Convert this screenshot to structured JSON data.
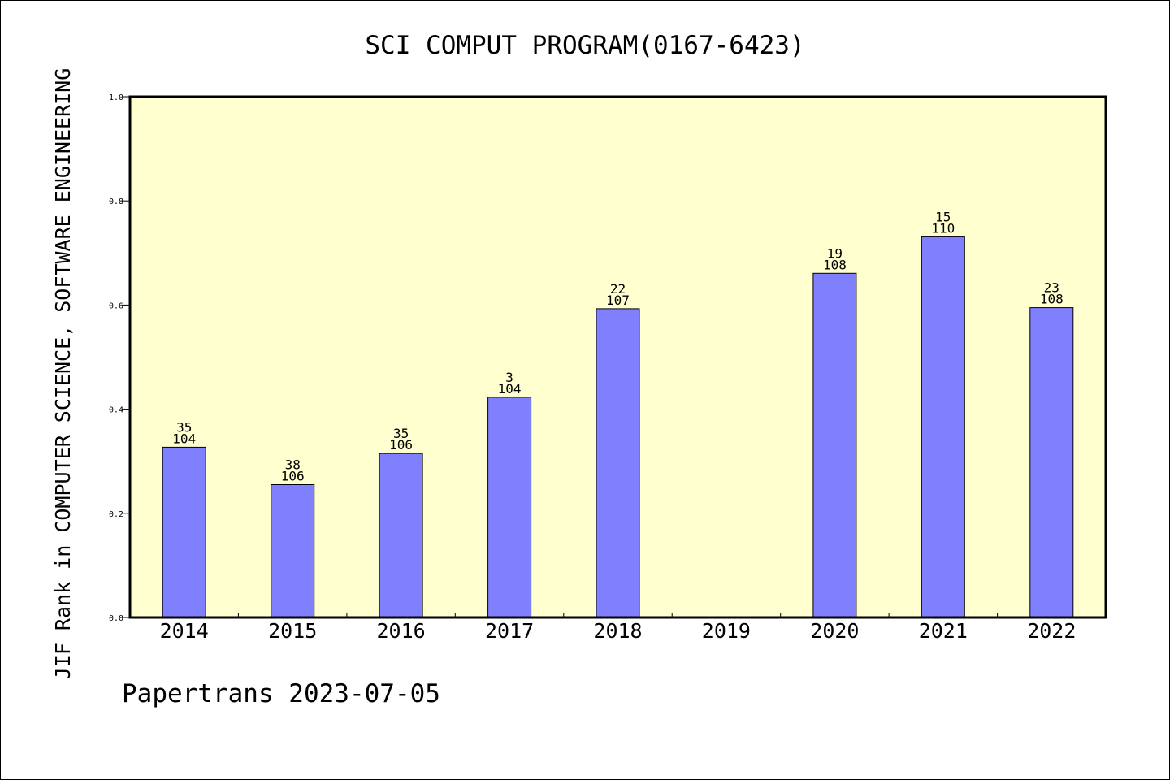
{
  "chart_data": {
    "type": "bar",
    "title": "SCI COMPUT PROGRAM(0167-6423)",
    "xlabel": "",
    "ylabel": "JIF Rank in COMPUTER SCIENCE, SOFTWARE ENGINEERING",
    "ylim": [
      0,
      1.0
    ],
    "yticks": [
      "0.0",
      "0.2",
      "0.4",
      "0.6",
      "0.8",
      "1.0"
    ],
    "grid": false,
    "categories": [
      "2014",
      "2015",
      "2016",
      "2017",
      "2018",
      "2019",
      "2020",
      "2021",
      "2022"
    ],
    "values": [
      0.327,
      0.255,
      0.315,
      0.423,
      0.593,
      null,
      0.661,
      0.731,
      0.595
    ],
    "rank": [
      "35",
      "38",
      "35",
      "3",
      "22",
      "",
      "19",
      "15",
      "23"
    ],
    "total": [
      "104",
      "106",
      "106",
      "104",
      "107",
      "",
      "108",
      "110",
      "108"
    ],
    "colors": {
      "bar": "#8080ff",
      "plot_bg": "#ffffd0",
      "axis": "#000000"
    }
  },
  "footer": {
    "text": "Papertrans 2023-07-05"
  }
}
